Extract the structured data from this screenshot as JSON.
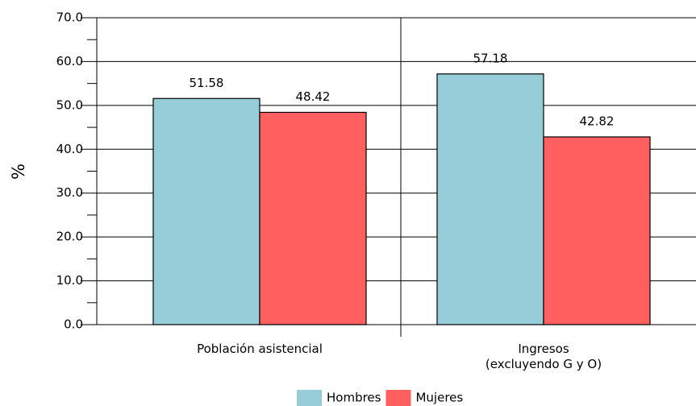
{
  "chart_data": {
    "type": "bar",
    "ylabel": "%",
    "categories": [
      [
        "Población asistencial"
      ],
      [
        "Ingresos",
        "(excluyendo G y O)"
      ]
    ],
    "series": [
      {
        "name": "Hombres",
        "color": "#96cdd9",
        "values": [
          51.58,
          57.18
        ]
      },
      {
        "name": "Mujeres",
        "color": "#ff5f5f",
        "values": [
          48.42,
          42.82
        ]
      }
    ],
    "ylim": [
      0,
      70
    ],
    "yticks": [
      {
        "value": 0,
        "label": "0.0"
      },
      {
        "value": 10,
        "label": "10.0"
      },
      {
        "value": 20,
        "label": "20.0"
      },
      {
        "value": 30,
        "label": "30.0"
      },
      {
        "value": 40,
        "label": "40.0"
      },
      {
        "value": 50,
        "label": "50.0"
      },
      {
        "value": 60,
        "label": "60.0"
      },
      {
        "value": 70,
        "label": "70.0"
      }
    ],
    "grid": true
  }
}
